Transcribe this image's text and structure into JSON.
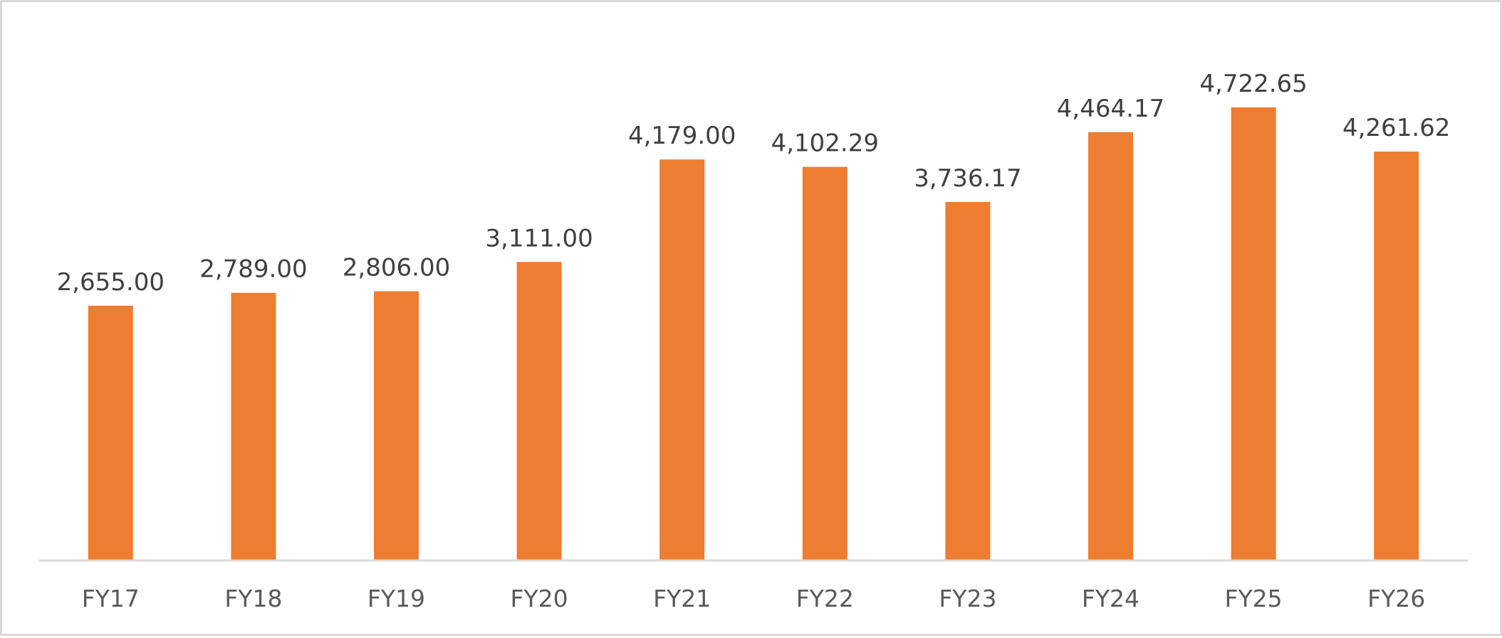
{
  "chart_data": {
    "type": "bar",
    "title": "",
    "xlabel": "",
    "ylabel": "",
    "categories": [
      "FY17",
      "FY18",
      "FY19",
      "FY20",
      "FY21",
      "FY22",
      "FY23",
      "FY24",
      "FY25",
      "FY26"
    ],
    "series": [
      {
        "values": [
          2655.0,
          2789.0,
          2806.0,
          3111.0,
          4179.0,
          4102.29,
          3736.17,
          4464.17,
          4722.65,
          4261.62
        ],
        "labels": [
          "2,655.00",
          "2,789.00",
          "2,806.00",
          "3,111.00",
          "4,179.00",
          "4,102.29",
          "3,736.17",
          "4,464.17",
          "4,722.65",
          "4,261.62"
        ],
        "color": "#ED7D31"
      }
    ],
    "ylim": [
      0,
      5300
    ],
    "grid": false,
    "legend": "none",
    "axis_color": "#D9D9D9",
    "frame_color": "#D9D9D9"
  }
}
